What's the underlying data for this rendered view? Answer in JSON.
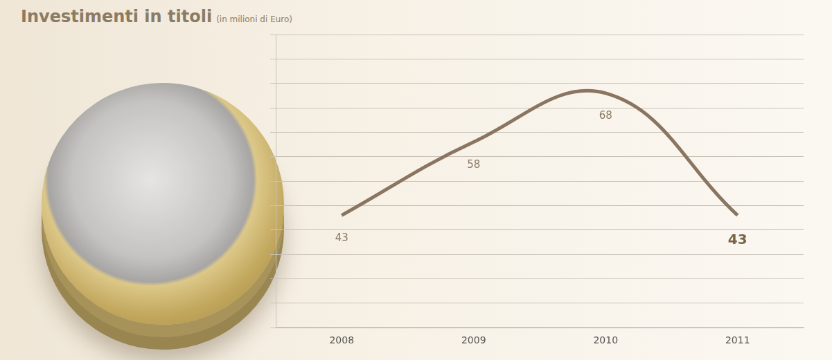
{
  "chart_data": {
    "type": "line",
    "title": "Investimenti in titoli",
    "subtitle": "(in milioni di Euro)",
    "categories": [
      "2008",
      "2009",
      "2010",
      "2011"
    ],
    "values": [
      43,
      58,
      68,
      43
    ],
    "color": "#8a7560",
    "ylim": [
      20,
      80
    ],
    "yticks": [
      20,
      25,
      30,
      35,
      40,
      45,
      50,
      55,
      60,
      65,
      70,
      75,
      80
    ],
    "grid": true,
    "data_labels": true,
    "tick_labels": "x"
  }
}
